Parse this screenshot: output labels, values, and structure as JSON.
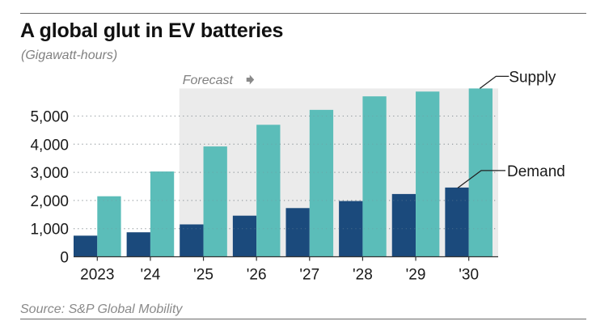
{
  "header": {
    "title": "A global glut in EV batteries",
    "subtitle": "(Gigawatt-hours)"
  },
  "footer": {
    "source": "Source: S&P Global Mobility"
  },
  "chart_data": {
    "type": "bar",
    "title": "A global glut in EV batteries",
    "subtitle": "(Gigawatt-hours)",
    "xlabel": "",
    "ylabel": "",
    "categories": [
      "2023",
      "'24",
      "'25",
      "'26",
      "'27",
      "'28",
      "'29",
      "'30"
    ],
    "series": [
      {
        "name": "Demand",
        "color": "#1b4a7c",
        "values": [
          750,
          870,
          1150,
          1460,
          1730,
          1980,
          2230,
          2460
        ]
      },
      {
        "name": "Supply",
        "color": "#5bbdb9",
        "values": [
          2150,
          3030,
          3920,
          4690,
          5220,
          5700,
          5870,
          5980
        ]
      }
    ],
    "ylim": [
      0,
      5980
    ],
    "yticks": [
      0,
      1000,
      2000,
      3000,
      4000,
      5000
    ],
    "ytick_labels": [
      "0",
      "1,000",
      "2,000",
      "3,000",
      "4,000",
      "5,000"
    ],
    "grid": true,
    "forecast": {
      "label": "Forecast",
      "start_category": "'25",
      "shade_color": "#ebebeb"
    },
    "annotations": [
      {
        "text": "Supply",
        "series": "Supply",
        "category": "'30"
      },
      {
        "text": "Demand",
        "series": "Demand",
        "category": "'30"
      }
    ],
    "source": "Source: S&P Global Mobility"
  }
}
